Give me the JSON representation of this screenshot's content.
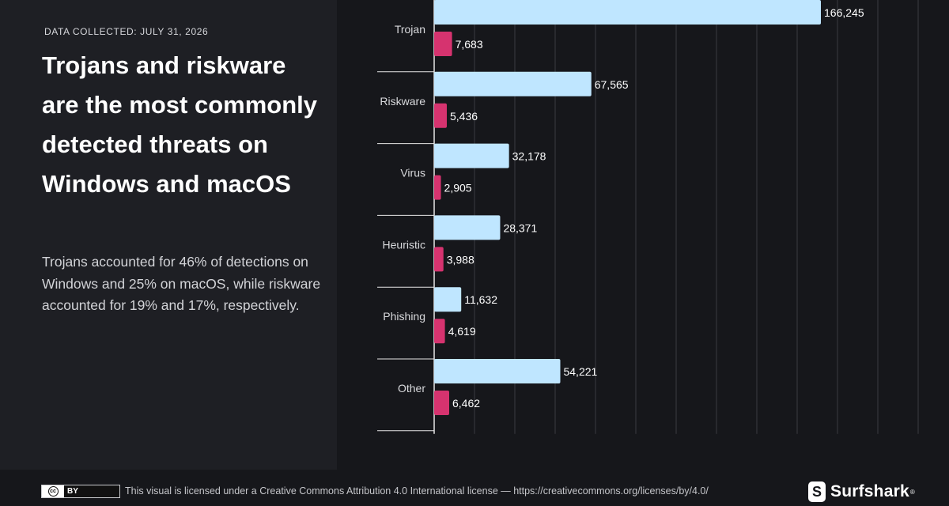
{
  "left": {
    "date_label": "DATA COLLECTED: JULY 31, 2026",
    "headline": "Trojans and riskware are the most commonly detected threats on Windows and macOS",
    "description": "Trojans accounted for 46% of detections on Windows and 25% on macOS, while riskware accounted for 19% and 17%, respectively."
  },
  "footer": {
    "cc_badge": "BY",
    "cc_symbol": "cc",
    "license_text": "This visual is licensed under a Creative Commons Attribution 4.0 International license — https://creativecommons.org/licenses/by/4.0/",
    "brand": "Surfshark",
    "brand_reg": "®"
  },
  "colors": {
    "windows_bar": "#bfe6ff",
    "macos_bar": "#d6336f",
    "grid": "#3a3b40",
    "axis": "#e6e6e6",
    "text": "#ffffff",
    "category_text": "#d9dadd"
  },
  "chart_data": {
    "type": "bar",
    "orientation": "horizontal",
    "categories": [
      "Trojan",
      "Riskware",
      "Virus",
      "Heuristic",
      "Phishing",
      "Other"
    ],
    "series": [
      {
        "values": [
          166245,
          67565,
          32178,
          28371,
          11632,
          54221
        ]
      },
      {
        "values": [
          7683,
          5436,
          2905,
          3988,
          4619,
          6462
        ]
      }
    ],
    "value_labels": [
      [
        "166,245",
        "67,565",
        "32,178",
        "28,371",
        "11,632",
        "54,221"
      ],
      [
        "7,683",
        "5,436",
        "2,905",
        "3,988",
        "4,619",
        "6,462"
      ]
    ],
    "xlim": [
      0,
      200000
    ],
    "grid": true,
    "legend": "none"
  }
}
